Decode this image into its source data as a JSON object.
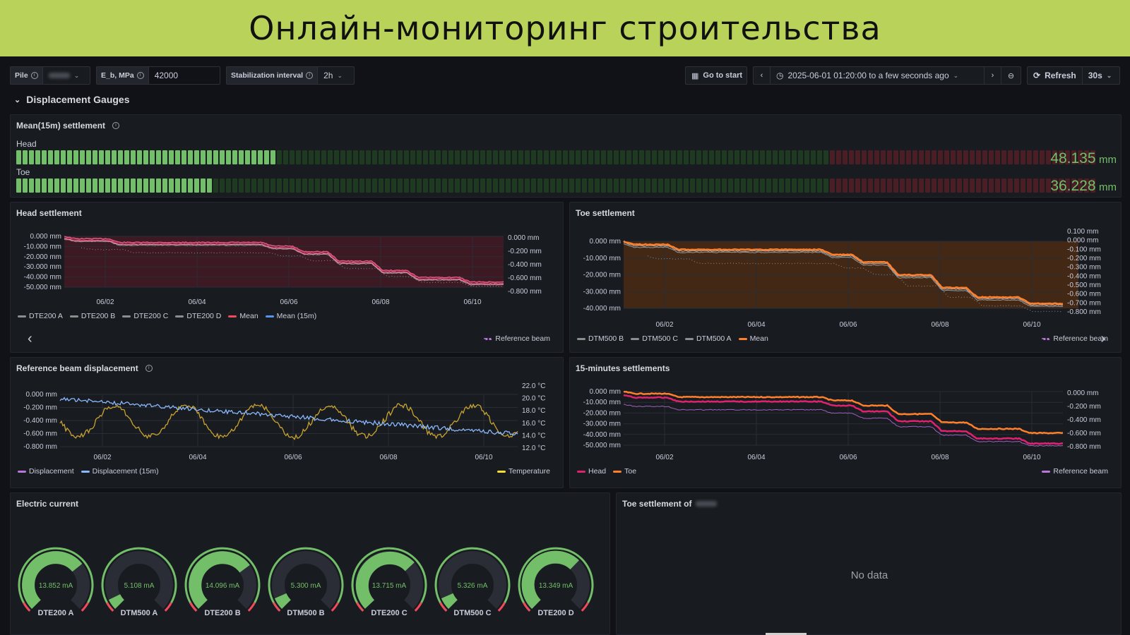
{
  "banner": {
    "title": "Онлайн-мониторинг строительства"
  },
  "toolbar": {
    "pile_label": "Pile",
    "eb_label": "E_b, MPa",
    "eb_value": "42000",
    "stab_label": "Stabilization interval",
    "stab_value": "2h",
    "go_to_start": "Go to start",
    "time_range": "2025-06-01 01:20:00 to a few seconds ago",
    "refresh": "Refresh",
    "refresh_interval": "30s"
  },
  "section": {
    "title": "Displacement Gauges"
  },
  "mean_panel": {
    "title": "Mean(15m) settlement",
    "rows": [
      {
        "label": "Head",
        "value": "48.135",
        "unit": "mm",
        "fraction": 0.24
      },
      {
        "label": "Toe",
        "value": "36.228",
        "unit": "mm",
        "fraction": 0.18
      }
    ],
    "threshold_fraction": 0.755,
    "colors": {
      "on": "#73bf69",
      "off": "#1e3a21",
      "warn": "#4a1e24"
    }
  },
  "head_panel": {
    "title": "Head settlement",
    "y_left": [
      "0.000 mm",
      "-10.000 mm",
      "-20.000 mm",
      "-30.000 mm",
      "-40.000 mm",
      "-50.000 mm"
    ],
    "y_right": [
      "0.000 mm",
      "-0.200 mm",
      "-0.400 mm",
      "-0.600 mm",
      "-0.800 mm"
    ],
    "x_ticks": [
      "06/02",
      "06/04",
      "06/06",
      "06/08",
      "06/10"
    ],
    "legend": [
      {
        "name": "DTE200 A",
        "color": "#8e8e8e"
      },
      {
        "name": "DTE200 B",
        "color": "#8e8e8e"
      },
      {
        "name": "DTE200 C",
        "color": "#8e8e8e"
      },
      {
        "name": "DTE200 D",
        "color": "#8e8e8e"
      },
      {
        "name": "Mean",
        "color": "#f2495c"
      },
      {
        "name": "Mean (15m)",
        "color": "#5794f2"
      }
    ],
    "legend_right": "Reference beam"
  },
  "toe_panel": {
    "title": "Toe settlement",
    "y_left": [
      "0.000 mm",
      "-10.000 mm",
      "-20.000 mm",
      "-30.000 mm",
      "-40.000 mm"
    ],
    "y_right": [
      "0.100 mm",
      "0.000 mm",
      "-0.100 mm",
      "-0.200 mm",
      "-0.300 mm",
      "-0.400 mm",
      "-0.500 mm",
      "-0.600 mm",
      "-0.700 mm",
      "-0.800 mm"
    ],
    "x_ticks": [
      "06/02",
      "06/04",
      "06/06",
      "06/08",
      "06/10"
    ],
    "legend": [
      {
        "name": "DTM500 B",
        "color": "#8e8e8e"
      },
      {
        "name": "DTM500 C",
        "color": "#8e8e8e"
      },
      {
        "name": "DTM500 A",
        "color": "#8e8e8e"
      },
      {
        "name": "Mean",
        "color": "#ff7f2a"
      }
    ],
    "legend_right": "Reference beam"
  },
  "beam_panel": {
    "title": "Reference beam displacement",
    "y_left": [
      "0.000 mm",
      "-0.200 mm",
      "-0.400 mm",
      "-0.600 mm",
      "-0.800 mm"
    ],
    "y_right": [
      "22.0 °C",
      "20.0 °C",
      "18.0 °C",
      "16.0 °C",
      "14.0 °C",
      "12.0 °C"
    ],
    "x_ticks": [
      "06/02",
      "06/04",
      "06/06",
      "06/08",
      "06/10"
    ],
    "legend": [
      {
        "name": "Displacement",
        "color": "#b877d9"
      },
      {
        "name": "Displacement (15m)",
        "color": "#8ab8ff"
      }
    ],
    "legend_right": "Temperature"
  },
  "min15_panel": {
    "title": "15-minutes settlements",
    "y_left": [
      "0.000 mm",
      "-10.000 mm",
      "-20.000 mm",
      "-30.000 mm",
      "-40.000 mm",
      "-50.000 mm"
    ],
    "y_right": [
      "0.000 mm",
      "-0.200 mm",
      "-0.400 mm",
      "-0.600 mm",
      "-0.800 mm"
    ],
    "x_ticks": [
      "06/02",
      "06/04",
      "06/06",
      "06/08",
      "06/10"
    ],
    "legend": [
      {
        "name": "Head",
        "color": "#e0226e"
      },
      {
        "name": "Toe",
        "color": "#ff7f2a"
      }
    ],
    "legend_right": "Reference beam"
  },
  "current_panel": {
    "title": "Electric current",
    "gauges": [
      {
        "name": "DTE200 A",
        "value": "13.852 mA",
        "fraction": 0.69
      },
      {
        "name": "DTM500 A",
        "value": "5.108 mA",
        "fraction": 0.07
      },
      {
        "name": "DTE200 B",
        "value": "14.096 mA",
        "fraction": 0.7
      },
      {
        "name": "DTM500 B",
        "value": "5.300 mA",
        "fraction": 0.08
      },
      {
        "name": "DTE200 C",
        "value": "13.715 mA",
        "fraction": 0.68
      },
      {
        "name": "DTM500 C",
        "value": "5.326 mA",
        "fraction": 0.08
      },
      {
        "name": "DTE200 D",
        "value": "13.349 mA",
        "fraction": 0.66
      }
    ]
  },
  "toe_of_panel": {
    "title": "Toe settlement of",
    "empty": "No data"
  }
}
